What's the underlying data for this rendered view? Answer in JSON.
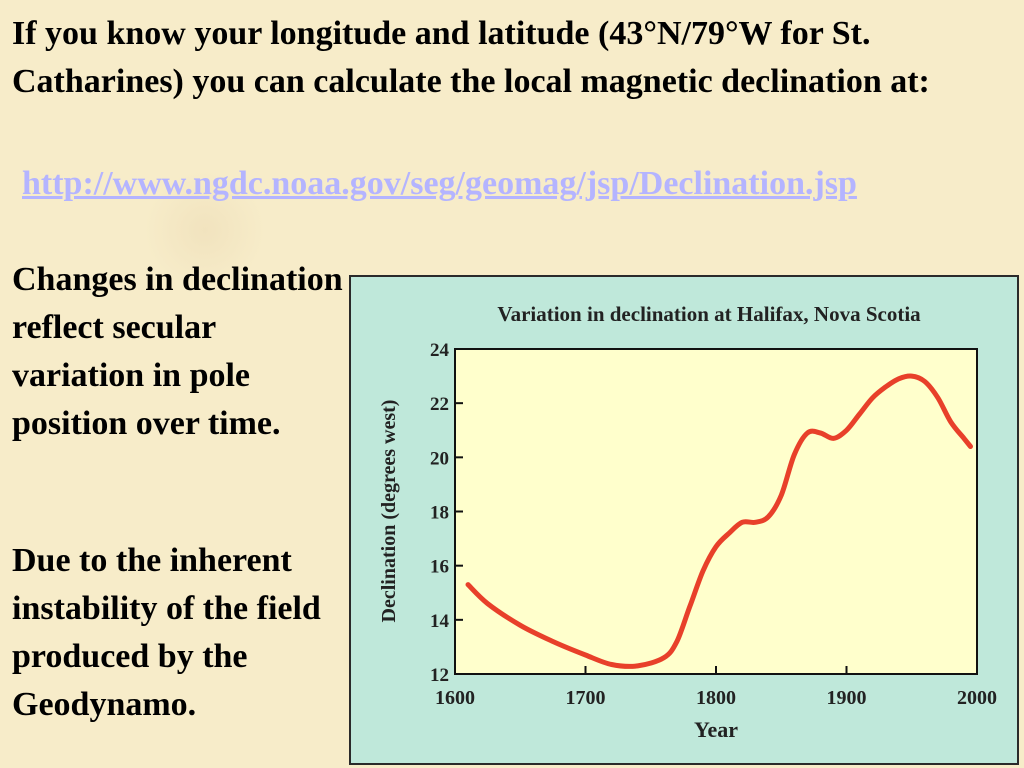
{
  "slide": {
    "intro": "If you know your longitude and latitude (43°N/79°W for St. Catharines) you can calculate the local magnetic declination at:",
    "link": "http://www.ngdc.noaa.gov/seg/geomag/jsp/Declination.jsp",
    "side_text_1": "Changes in declination reflect secular variation in pole position over time.",
    "side_text_2": "Due to the inherent instability of the field produced by the Geodynamo."
  },
  "colors": {
    "background": "#f7ecc9",
    "chart_panel": "#bfe8da",
    "plot_area": "#ffffcc",
    "line": "#e8402a",
    "link": "#b4b4ff"
  },
  "chart_data": {
    "type": "line",
    "title": "Variation in declination at Halifax, Nova Scotia",
    "xlabel": "Year",
    "ylabel": "Declination (degrees west)",
    "xlim": [
      1600,
      2000
    ],
    "ylim": [
      12,
      24
    ],
    "x_ticks": [
      1600,
      1700,
      1800,
      1900,
      2000
    ],
    "y_ticks": [
      12,
      14,
      16,
      18,
      20,
      22,
      24
    ],
    "grid": false,
    "series": [
      {
        "x": [
          1610,
          1625,
          1650,
          1675,
          1700,
          1720,
          1740,
          1760,
          1770,
          1780,
          1790,
          1800,
          1810,
          1820,
          1830,
          1840,
          1850,
          1860,
          1870,
          1880,
          1890,
          1900,
          1910,
          1920,
          1930,
          1940,
          1950,
          1960,
          1970,
          1980,
          1990,
          1995
        ],
        "y": [
          15.3,
          14.6,
          13.8,
          13.2,
          12.7,
          12.35,
          12.3,
          12.6,
          13.2,
          14.5,
          15.8,
          16.7,
          17.2,
          17.6,
          17.6,
          17.8,
          18.6,
          20.1,
          20.9,
          20.9,
          20.7,
          21.0,
          21.6,
          22.2,
          22.6,
          22.9,
          23.0,
          22.8,
          22.2,
          21.3,
          20.7,
          20.4
        ]
      }
    ]
  }
}
